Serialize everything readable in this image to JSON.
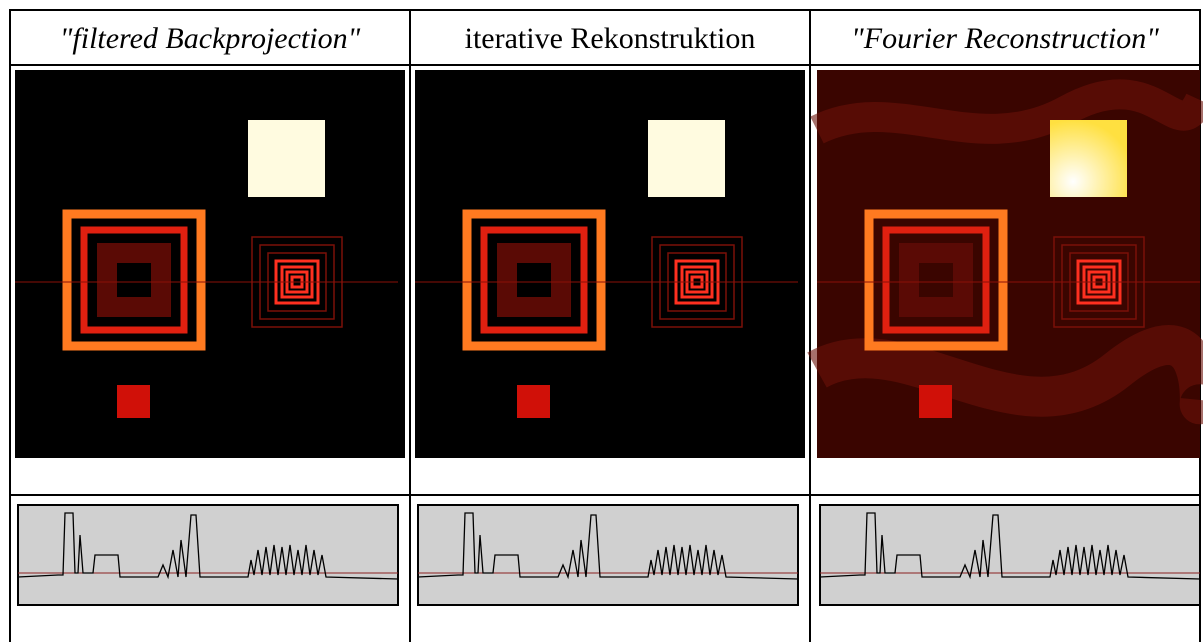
{
  "header": {
    "columns": [
      "\"filtered Backprojection\"",
      "iterative Rekonstruktion",
      "\"Fourier Reconstruction\""
    ]
  }
}
